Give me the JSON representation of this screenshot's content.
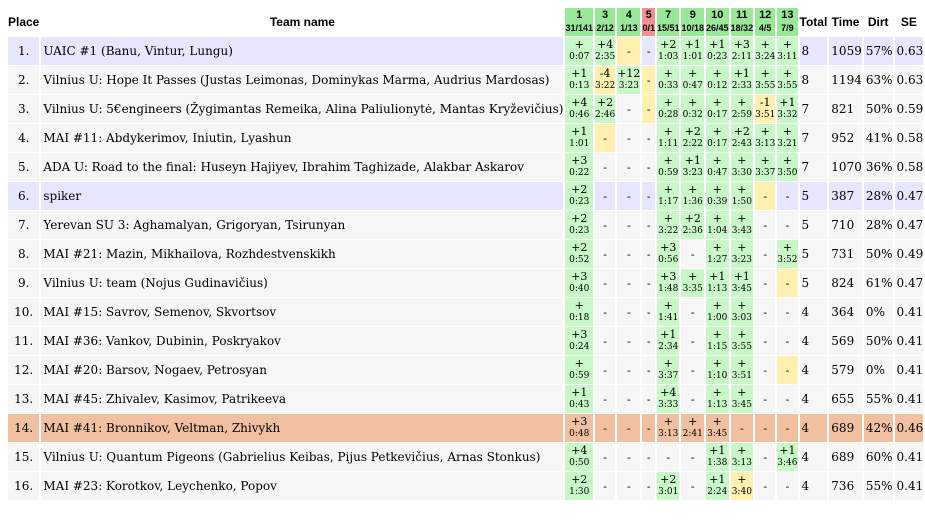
{
  "headers": {
    "place": "Place",
    "team": "Team name",
    "total": "Total",
    "time": "Time",
    "dirt": "Dirt",
    "se": "SE"
  },
  "problems": [
    {
      "num": "1",
      "stat": "31/141"
    },
    {
      "num": "3",
      "stat": "2/12"
    },
    {
      "num": "4",
      "stat": "1/13"
    },
    {
      "num": "5",
      "stat": "0/1"
    },
    {
      "num": "7",
      "stat": "15/51"
    },
    {
      "num": "9",
      "stat": "10/18"
    },
    {
      "num": "10",
      "stat": "26/45"
    },
    {
      "num": "11",
      "stat": "18/32"
    },
    {
      "num": "12",
      "stat": "4/5"
    },
    {
      "num": "13",
      "stat": "7/9"
    }
  ],
  "rows": [
    {
      "place": "1.",
      "team": "UAIC #1 (Banu, Vintur, Lungu)",
      "style": "A",
      "cells": [
        [
          "+",
          "0:07",
          "ok"
        ],
        [
          "+4",
          "2:35",
          "ok"
        ],
        [
          "-",
          "",
          "bad"
        ],
        [
          "-",
          "",
          ""
        ],
        [
          "+2",
          "1:03",
          "ok"
        ],
        [
          "+1",
          "1:01",
          "ok"
        ],
        [
          "+1",
          "0:23",
          "ok"
        ],
        [
          "+3",
          "2:11",
          "ok"
        ],
        [
          "+",
          "3:24",
          "ok"
        ],
        [
          "+",
          "3:11",
          "ok"
        ]
      ],
      "total": "8",
      "time": "1059",
      "dirt": "57%",
      "se": "0.63"
    },
    {
      "place": "2.",
      "team": "Vilnius U: Hope It Passes (Justas Leimonas, Dominykas Marma, Audrius Mardosas)",
      "style": "B",
      "cells": [
        [
          "+1",
          "0:13",
          "ok"
        ],
        [
          "-4",
          "3:22",
          "bad"
        ],
        [
          "+12",
          "3:23",
          "ok"
        ],
        [
          "-",
          "",
          "bad"
        ],
        [
          "+",
          "0:33",
          "ok"
        ],
        [
          "+",
          "0:47",
          "ok"
        ],
        [
          "+",
          "0:12",
          "ok"
        ],
        [
          "+1",
          "2:33",
          "ok"
        ],
        [
          "+",
          "3:55",
          "ok"
        ],
        [
          "+",
          "3:55",
          "ok"
        ]
      ],
      "total": "8",
      "time": "1194",
      "dirt": "63%",
      "se": "0.63"
    },
    {
      "place": "3.",
      "team": "Vilnius U: 5€engineers (Žygimantas Remeika, Alina Paliulionytė, Mantas Kryževičius)",
      "style": "B",
      "cells": [
        [
          "+4",
          "0:46",
          "ok"
        ],
        [
          "+2",
          "2:46",
          "ok"
        ],
        [
          "-",
          "",
          ""
        ],
        [
          "-",
          "",
          "bad"
        ],
        [
          "+",
          "0:28",
          "ok"
        ],
        [
          "+",
          "0:32",
          "ok"
        ],
        [
          "+",
          "0:17",
          "ok"
        ],
        [
          "+",
          "2:59",
          "ok"
        ],
        [
          "-1",
          "3:51",
          "bad"
        ],
        [
          "+1",
          "3:32",
          "ok"
        ]
      ],
      "total": "7",
      "time": "821",
      "dirt": "50%",
      "se": "0.59"
    },
    {
      "place": "4.",
      "team": "MAI #11: Abdykerimov, Iniutin, Lyashun",
      "style": "B",
      "cells": [
        [
          "+1",
          "1:01",
          "ok"
        ],
        [
          "-",
          "",
          "bad"
        ],
        [
          "-",
          "",
          ""
        ],
        [
          "-",
          "",
          ""
        ],
        [
          "+",
          "1:11",
          "ok"
        ],
        [
          "+2",
          "2:22",
          "ok"
        ],
        [
          "+",
          "0:17",
          "ok"
        ],
        [
          "+2",
          "2:43",
          "ok"
        ],
        [
          "+",
          "3:13",
          "ok"
        ],
        [
          "+",
          "3:21",
          "ok"
        ]
      ],
      "total": "7",
      "time": "952",
      "dirt": "41%",
      "se": "0.58"
    },
    {
      "place": "5.",
      "team": "ADA U: Road to the final: Huseyn Hajiyev, Ibrahim Taghizade, Alakbar Askarov",
      "style": "B",
      "cells": [
        [
          "+3",
          "0:22",
          "ok"
        ],
        [
          "-",
          "",
          ""
        ],
        [
          "-",
          "",
          ""
        ],
        [
          "-",
          "",
          ""
        ],
        [
          "+",
          "0:59",
          "ok"
        ],
        [
          "+1",
          "3:23",
          "ok"
        ],
        [
          "+",
          "0:47",
          "ok"
        ],
        [
          "+",
          "3:30",
          "ok"
        ],
        [
          "+",
          "3:37",
          "ok"
        ],
        [
          "+",
          "3:50",
          "ok"
        ]
      ],
      "total": "7",
      "time": "1070",
      "dirt": "36%",
      "se": "0.58"
    },
    {
      "place": "6.",
      "team": "spiker",
      "style": "A",
      "cells": [
        [
          "+2",
          "0:23",
          "ok"
        ],
        [
          "-",
          "",
          ""
        ],
        [
          "-",
          "",
          ""
        ],
        [
          "-",
          "",
          ""
        ],
        [
          "+",
          "1:17",
          "ok"
        ],
        [
          "+",
          "1:36",
          "ok"
        ],
        [
          "+",
          "0:39",
          "ok"
        ],
        [
          "+",
          "1:50",
          "ok"
        ],
        [
          "-",
          "",
          "bad"
        ],
        [
          "-",
          "",
          ""
        ]
      ],
      "total": "5",
      "time": "387",
      "dirt": "28%",
      "se": "0.47"
    },
    {
      "place": "7.",
      "team": "Yerevan SU 3: Aghamalyan, Grigoryan, Tsirunyan",
      "style": "B",
      "cells": [
        [
          "+2",
          "0:23",
          "ok"
        ],
        [
          "-",
          "",
          ""
        ],
        [
          "-",
          "",
          ""
        ],
        [
          "-",
          "",
          ""
        ],
        [
          "+",
          "3:22",
          "ok"
        ],
        [
          "+2",
          "2:36",
          "ok"
        ],
        [
          "+",
          "1:04",
          "ok"
        ],
        [
          "+",
          "3:43",
          "ok"
        ],
        [
          "-",
          "",
          ""
        ],
        [
          "-",
          "",
          ""
        ]
      ],
      "total": "5",
      "time": "710",
      "dirt": "28%",
      "se": "0.47"
    },
    {
      "place": "8.",
      "team": "MAI #21: Mazin, Mikhailova, Rozhdestvenskikh",
      "style": "B",
      "cells": [
        [
          "+2",
          "0:52",
          "ok"
        ],
        [
          "-",
          "",
          ""
        ],
        [
          "-",
          "",
          ""
        ],
        [
          "-",
          "",
          ""
        ],
        [
          "+3",
          "0:56",
          "ok"
        ],
        [
          "-",
          "",
          ""
        ],
        [
          "+",
          "1:27",
          "ok"
        ],
        [
          "+",
          "3:23",
          "ok"
        ],
        [
          "-",
          "",
          ""
        ],
        [
          "+",
          "3:52",
          "ok"
        ]
      ],
      "total": "5",
      "time": "731",
      "dirt": "50%",
      "se": "0.49"
    },
    {
      "place": "9.",
      "team": "Vilnius U: team (Nojus Gudinavičius)",
      "style": "B",
      "cells": [
        [
          "+3",
          "0:40",
          "ok"
        ],
        [
          "-",
          "",
          ""
        ],
        [
          "-",
          "",
          ""
        ],
        [
          "-",
          "",
          ""
        ],
        [
          "+3",
          "1:48",
          "ok"
        ],
        [
          "+",
          "3:35",
          "ok"
        ],
        [
          "+1",
          "1:13",
          "ok"
        ],
        [
          "+1",
          "3:45",
          "ok"
        ],
        [
          "-",
          "",
          ""
        ],
        [
          "-",
          "",
          "bad"
        ]
      ],
      "total": "5",
      "time": "824",
      "dirt": "61%",
      "se": "0.47"
    },
    {
      "place": "10.",
      "team": "MAI #15: Savrov, Semenov, Skvortsov",
      "style": "B",
      "cells": [
        [
          "+",
          "0:18",
          "ok"
        ],
        [
          "-",
          "",
          ""
        ],
        [
          "-",
          "",
          ""
        ],
        [
          "-",
          "",
          ""
        ],
        [
          "+",
          "1:41",
          "ok"
        ],
        [
          "-",
          "",
          ""
        ],
        [
          "+",
          "1:00",
          "ok"
        ],
        [
          "+",
          "3:03",
          "ok"
        ],
        [
          "-",
          "",
          ""
        ],
        [
          "-",
          "",
          ""
        ]
      ],
      "total": "4",
      "time": "364",
      "dirt": "0%",
      "se": "0.41"
    },
    {
      "place": "11.",
      "team": "MAI #36: Vankov, Dubinin, Poskryakov",
      "style": "B",
      "cells": [
        [
          "+3",
          "0:24",
          "ok"
        ],
        [
          "-",
          "",
          ""
        ],
        [
          "-",
          "",
          ""
        ],
        [
          "-",
          "",
          ""
        ],
        [
          "+1",
          "2:34",
          "ok"
        ],
        [
          "-",
          "",
          ""
        ],
        [
          "+",
          "1:15",
          "ok"
        ],
        [
          "+",
          "3:55",
          "ok"
        ],
        [
          "-",
          "",
          ""
        ],
        [
          "-",
          "",
          ""
        ]
      ],
      "total": "4",
      "time": "569",
      "dirt": "50%",
      "se": "0.41"
    },
    {
      "place": "12.",
      "team": "MAI #20: Barsov, Nogaev, Petrosyan",
      "style": "B",
      "cells": [
        [
          "+",
          "0:59",
          "ok"
        ],
        [
          "-",
          "",
          ""
        ],
        [
          "-",
          "",
          ""
        ],
        [
          "-",
          "",
          ""
        ],
        [
          "+",
          "3:37",
          "ok"
        ],
        [
          "-",
          "",
          ""
        ],
        [
          "+",
          "1:10",
          "ok"
        ],
        [
          "+",
          "3:51",
          "ok"
        ],
        [
          "-",
          "",
          ""
        ],
        [
          "-",
          "",
          "bad"
        ]
      ],
      "total": "4",
      "time": "579",
      "dirt": "0%",
      "se": "0.41"
    },
    {
      "place": "13.",
      "team": "MAI #45: Zhivalev, Kasimov, Patrikeeva",
      "style": "B",
      "cells": [
        [
          "+1",
          "0:43",
          "ok"
        ],
        [
          "-",
          "",
          ""
        ],
        [
          "-",
          "",
          ""
        ],
        [
          "-",
          "",
          ""
        ],
        [
          "+4",
          "3:33",
          "ok"
        ],
        [
          "-",
          "",
          ""
        ],
        [
          "+",
          "1:13",
          "ok"
        ],
        [
          "+",
          "3:45",
          "ok"
        ],
        [
          "-",
          "",
          ""
        ],
        [
          "-",
          "",
          ""
        ]
      ],
      "total": "4",
      "time": "655",
      "dirt": "55%",
      "se": "0.41"
    },
    {
      "place": "14.",
      "team": "MAI #41: Bronnikov, Veltman, Zhivykh",
      "style": "H",
      "cells": [
        [
          "+3",
          "0:48",
          "ok"
        ],
        [
          "-",
          "",
          ""
        ],
        [
          "-",
          "",
          ""
        ],
        [
          "-",
          "",
          ""
        ],
        [
          "+",
          "3:13",
          "ok"
        ],
        [
          "+",
          "2:41",
          "ok"
        ],
        [
          "+",
          "3:45",
          "ok"
        ],
        [
          "-",
          "",
          ""
        ],
        [
          "-",
          "",
          ""
        ],
        [
          "-",
          "",
          ""
        ]
      ],
      "total": "4",
      "time": "689",
      "dirt": "42%",
      "se": "0.46"
    },
    {
      "place": "15.",
      "team": "Vilnius U: Quantum Pigeons (Gabrielius Keibas, Pijus Petkevičius, Arnas Stonkus)",
      "style": "B",
      "cells": [
        [
          "+4",
          "0:50",
          "ok"
        ],
        [
          "-",
          "",
          ""
        ],
        [
          "-",
          "",
          ""
        ],
        [
          "-",
          "",
          ""
        ],
        [
          "-",
          "",
          ""
        ],
        [
          "-",
          "",
          ""
        ],
        [
          "+1",
          "1:38",
          "ok"
        ],
        [
          "+",
          "3:13",
          "ok"
        ],
        [
          "-",
          "",
          ""
        ],
        [
          "+1",
          "3:46",
          "ok"
        ]
      ],
      "total": "4",
      "time": "689",
      "dirt": "60%",
      "se": "0.41"
    },
    {
      "place": "16.",
      "team": "MAI #23: Korotkov, Leychenko, Popov",
      "style": "B",
      "cells": [
        [
          "+2",
          "1:30",
          "ok"
        ],
        [
          "-",
          "",
          ""
        ],
        [
          "-",
          "",
          ""
        ],
        [
          "-",
          "",
          ""
        ],
        [
          "+2",
          "3:01",
          "ok"
        ],
        [
          "-",
          "",
          ""
        ],
        [
          "+1",
          "2:24",
          "ok"
        ],
        [
          "+",
          "3:40",
          "bad"
        ],
        [
          "-",
          "",
          ""
        ],
        [
          "-",
          "",
          ""
        ]
      ],
      "total": "4",
      "time": "736",
      "dirt": "55%",
      "se": "0.41"
    }
  ]
}
